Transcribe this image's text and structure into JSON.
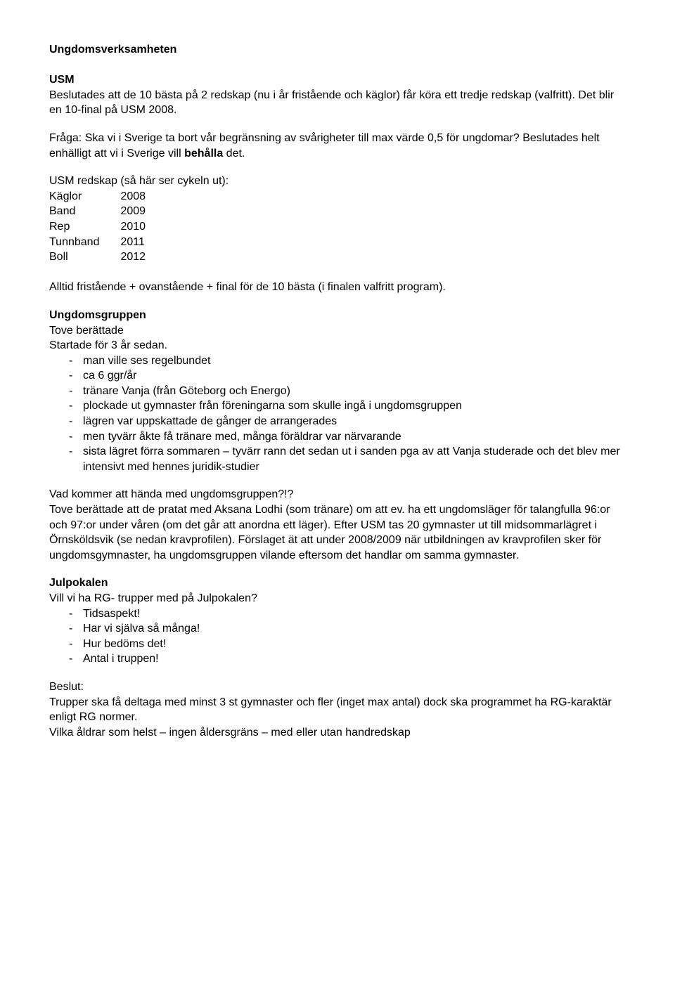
{
  "title": "Ungdomsverksamheten",
  "usm": {
    "heading": "USM",
    "para1": "Beslutades att de 10 bästa på 2 redskap (nu i år fristående och käglor) får köra ett tredje redskap (valfritt). Det blir en 10-final på USM 2008.",
    "para2_pre": "Fråga: Ska vi i Sverige ta bort vår begränsning av svårigheter till max värde 0,5 för ungdomar? Beslutades helt enhälligt att vi i Sverige vill ",
    "para2_bold": "behålla",
    "para2_post": " det.",
    "cycle_intro": "USM redskap (så här ser cykeln ut):",
    "cycle": [
      {
        "name": "Käglor",
        "year": "2008"
      },
      {
        "name": "Band",
        "year": "2009"
      },
      {
        "name": "Rep",
        "year": "2010"
      },
      {
        "name": "Tunnband",
        "year": "2011"
      },
      {
        "name": "Boll",
        "year": "2012"
      }
    ],
    "para3": "Alltid fristående + ovanstående + final för de 10 bästa (i finalen valfritt program)."
  },
  "ungdomsgruppen": {
    "heading": "Ungdomsgruppen",
    "line1": "Tove berättade",
    "line2": "Startade för 3 år sedan.",
    "bullets": [
      "man ville ses regelbundet",
      "ca 6 ggr/år",
      "tränare Vanja (från Göteborg och Energo)",
      "plockade ut gymnaster från föreningarna som skulle ingå i ungdomsgruppen",
      "lägren var uppskattade de gånger de arrangerades",
      "men tyvärr åkte få tränare med, många föräldrar var närvarande",
      "sista lägret förra sommaren – tyvärr rann det sedan ut i sanden pga av att Vanja studerade och det blev mer intensivt med hennes juridik-studier"
    ],
    "para1": "Vad kommer att hända med ungdomsgruppen?!?",
    "para2": "Tove berättade att de pratat med Aksana Lodhi (som tränare) om att ev. ha ett ungdomsläger för talangfulla 96:or och 97:or  under våren (om det går att anordna ett läger). Efter USM tas 20 gymnaster ut till midsommarlägret i Örnsköldsvik (se nedan kravprofilen). Förslaget ät att under 2008/2009 när utbildningen av kravprofilen sker för ungdomsgymnaster, ha ungdomsgruppen vilande eftersom det handlar om samma gymnaster."
  },
  "julpokalen": {
    "heading": "Julpokalen",
    "line1": "Vill vi ha RG- trupper med på Julpokalen?",
    "bullets": [
      "Tidsaspekt!",
      "Har vi själva så många!",
      "Hur bedöms det!",
      "Antal i truppen!"
    ]
  },
  "beslut": {
    "heading": "Beslut:",
    "para1": "Trupper ska få deltaga med minst 3 st gymnaster och fler (inget max antal) dock ska programmet ha RG-karaktär enligt RG normer.",
    "para2": "Vilka åldrar som helst – ingen åldersgräns – med eller utan handredskap"
  }
}
